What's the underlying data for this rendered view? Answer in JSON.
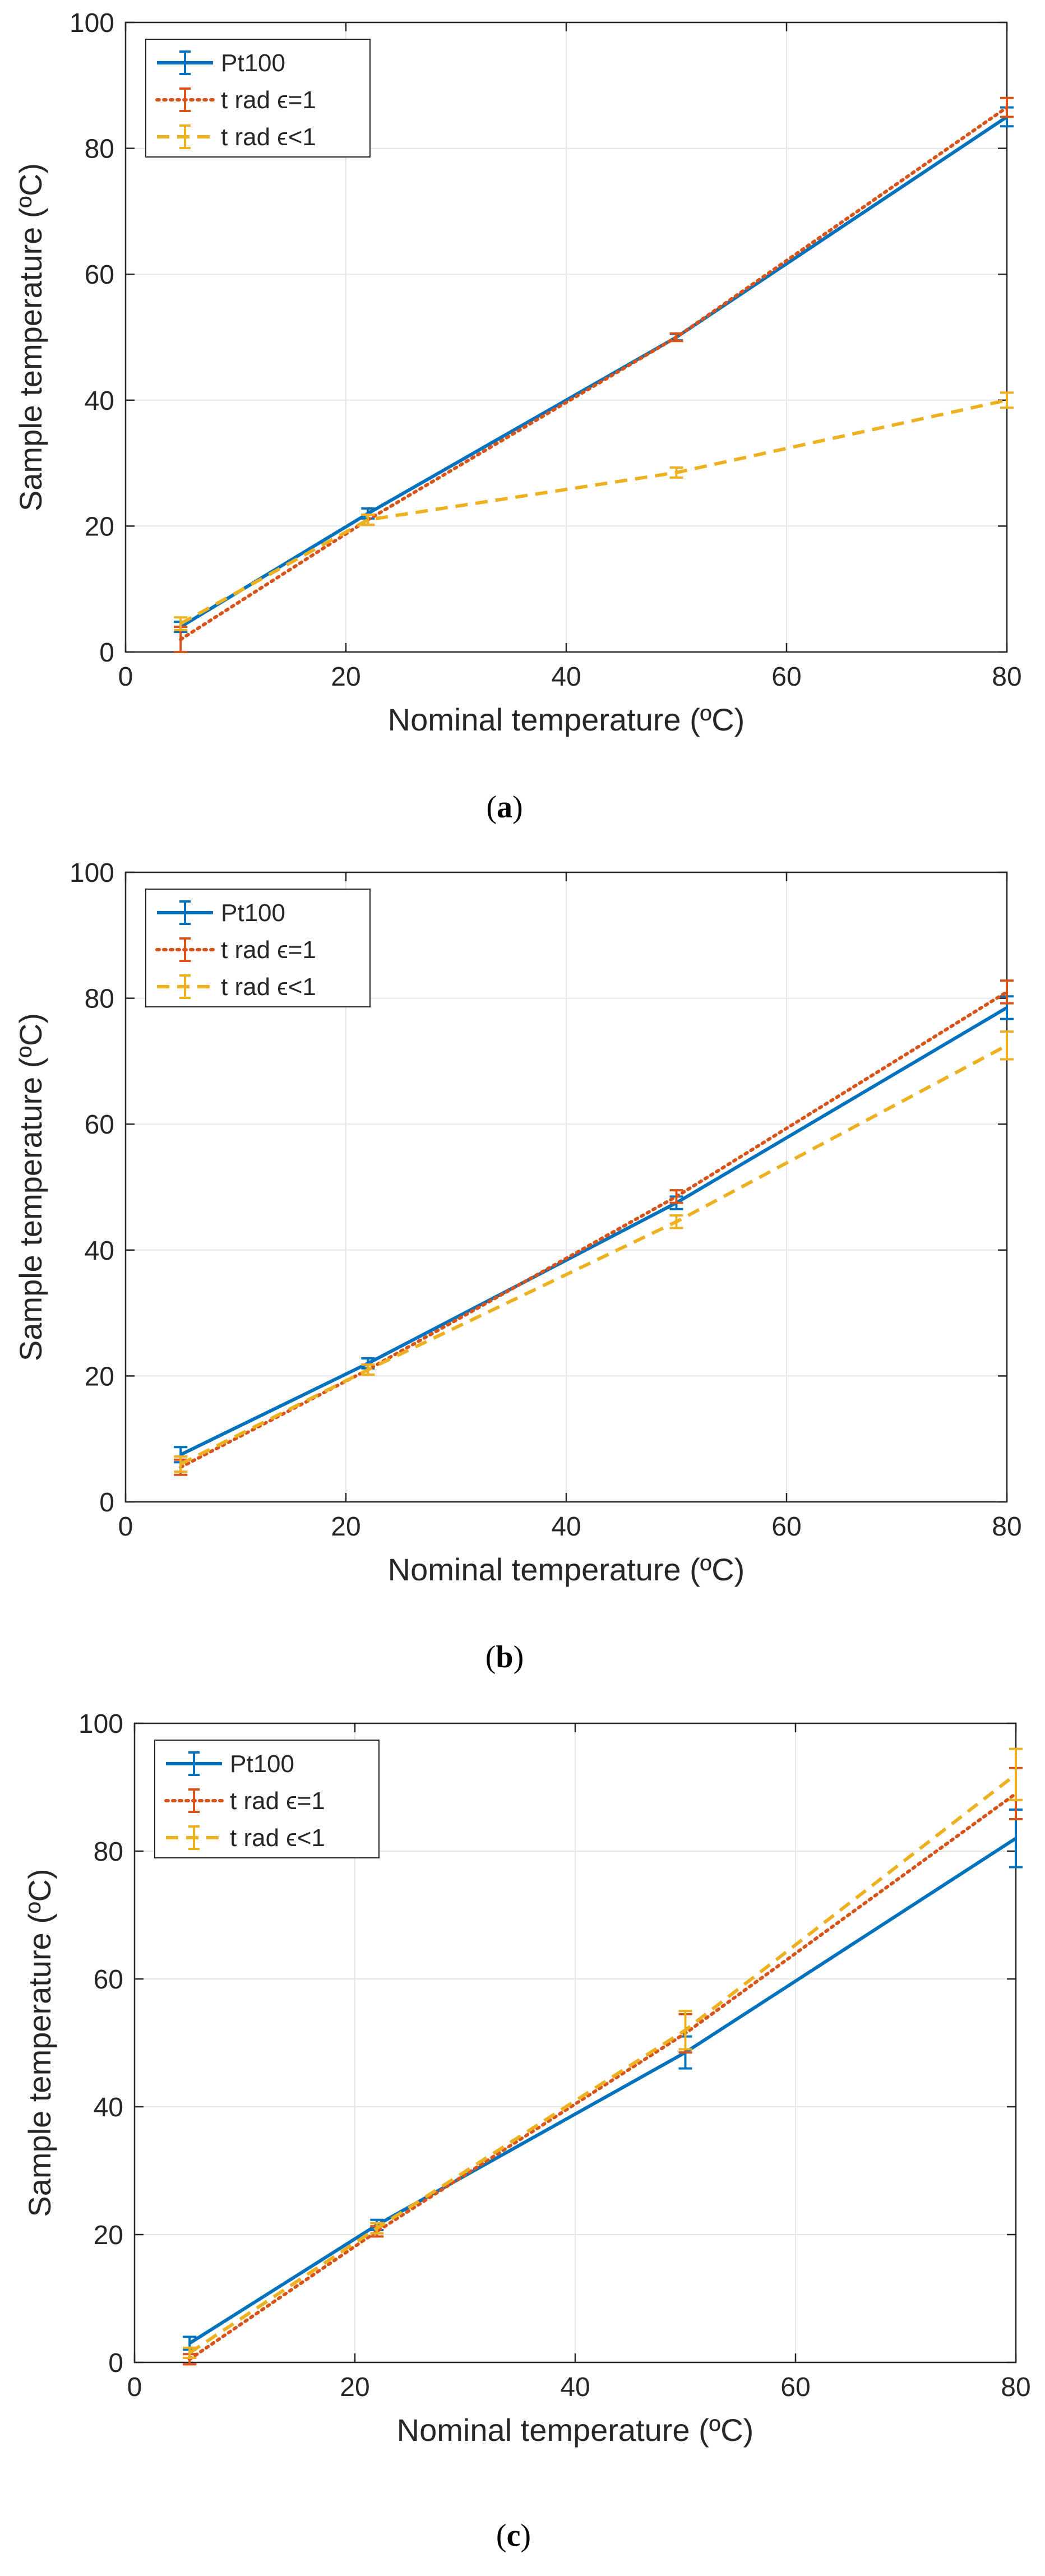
{
  "chart_data": [
    {
      "type": "line",
      "caption": "(a)",
      "caption_letter": "a",
      "xlabel": "Nominal temperature (ºC)",
      "ylabel": "Sample temperature (ºC)",
      "xlim": [
        0,
        80
      ],
      "ylim": [
        0,
        100
      ],
      "xticks": [
        0,
        20,
        40,
        60,
        80
      ],
      "yticks": [
        0,
        20,
        40,
        60,
        80,
        100
      ],
      "grid": true,
      "legend_position": "top-left",
      "x": [
        5,
        22,
        50,
        80
      ],
      "series": [
        {
          "name": "Pt100",
          "values": [
            4,
            22,
            50,
            85
          ],
          "errors": [
            0.8,
            0.8,
            0.5,
            1.5
          ],
          "color": "#0072BD",
          "style": "solid"
        },
        {
          "name": "t rad ϵ=1",
          "values": [
            2,
            21,
            50,
            86.5
          ],
          "errors": [
            2,
            0.8,
            0.6,
            1.5
          ],
          "color": "#D95319",
          "style": "dotted"
        },
        {
          "name": "t rad ϵ<1",
          "values": [
            4.5,
            21,
            28.5,
            40
          ],
          "errors": [
            1,
            0.8,
            0.8,
            1.2
          ],
          "color": "#EDB120",
          "style": "dashed"
        }
      ]
    },
    {
      "type": "line",
      "caption": "(b)",
      "caption_letter": "b",
      "xlabel": "Nominal temperature (ºC)",
      "ylabel": "Sample temperature (ºC)",
      "xlim": [
        0,
        80
      ],
      "ylim": [
        0,
        100
      ],
      "xticks": [
        0,
        20,
        40,
        60,
        80
      ],
      "yticks": [
        0,
        20,
        40,
        60,
        80,
        100
      ],
      "grid": true,
      "legend_position": "top-left",
      "x": [
        5,
        22,
        50,
        80
      ],
      "series": [
        {
          "name": "Pt100",
          "values": [
            7.5,
            22,
            47.5,
            78.5
          ],
          "errors": [
            1.2,
            0.8,
            1,
            1.8
          ],
          "color": "#0072BD",
          "style": "solid"
        },
        {
          "name": "t rad ϵ=1",
          "values": [
            5.5,
            21,
            48.5,
            81
          ],
          "errors": [
            1.2,
            0.8,
            1,
            1.8
          ],
          "color": "#D95319",
          "style": "dotted"
        },
        {
          "name": "t rad ϵ<1",
          "values": [
            6,
            21,
            44.5,
            72.5
          ],
          "errors": [
            1.2,
            0.8,
            1,
            2.2
          ],
          "color": "#EDB120",
          "style": "dashed"
        }
      ]
    },
    {
      "type": "line",
      "caption": "(c)",
      "caption_letter": "c",
      "xlabel": "Nominal temperature (ºC)",
      "ylabel": "Sample temperature (ºC)",
      "xlim": [
        0,
        80
      ],
      "ylim": [
        0,
        100
      ],
      "xticks": [
        0,
        20,
        40,
        60,
        80
      ],
      "yticks": [
        0,
        20,
        40,
        60,
        80,
        100
      ],
      "grid": true,
      "legend_position": "top-left",
      "x": [
        5,
        22,
        50,
        80
      ],
      "series": [
        {
          "name": "Pt100",
          "values": [
            3,
            21.5,
            48.5,
            82
          ],
          "errors": [
            1,
            0.8,
            2.5,
            4.5
          ],
          "color": "#0072BD",
          "style": "solid"
        },
        {
          "name": "t rad ϵ=1",
          "values": [
            0.5,
            20.5,
            51.5,
            89
          ],
          "errors": [
            0.8,
            0.8,
            3,
            4
          ],
          "color": "#D95319",
          "style": "dotted"
        },
        {
          "name": "t rad ϵ<1",
          "values": [
            1.5,
            21,
            52,
            92
          ],
          "errors": [
            0.8,
            0.8,
            3,
            4
          ],
          "color": "#EDB120",
          "style": "dashed"
        }
      ]
    }
  ]
}
